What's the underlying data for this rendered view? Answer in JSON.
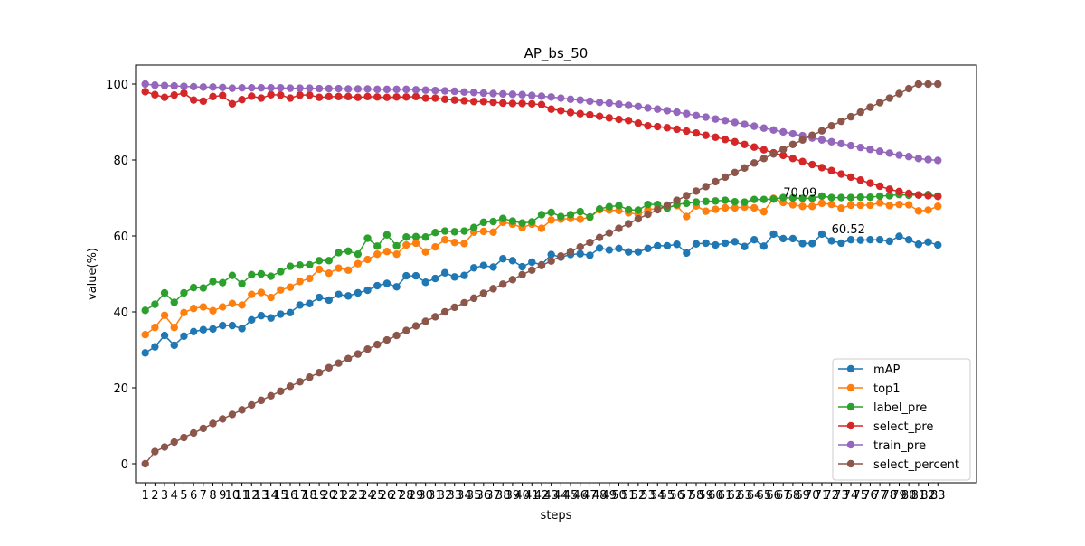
{
  "chart_data": {
    "type": "line",
    "title": "AP_bs_50",
    "xlabel": "steps",
    "ylabel": "value(%)",
    "xlim": [
      0.0,
      87.0
    ],
    "ylim": [
      -5.0,
      105.0
    ],
    "x_ticks": [
      1,
      2,
      3,
      4,
      5,
      6,
      7,
      8,
      9,
      10,
      11,
      12,
      13,
      14,
      15,
      16,
      17,
      18,
      19,
      20,
      21,
      22,
      23,
      24,
      25,
      26,
      27,
      28,
      29,
      30,
      31,
      32,
      33,
      34,
      35,
      36,
      37,
      38,
      39,
      40,
      41,
      42,
      43,
      44,
      45,
      46,
      47,
      48,
      49,
      50,
      51,
      52,
      53,
      54,
      55,
      56,
      57,
      58,
      59,
      60,
      61,
      62,
      63,
      64,
      65,
      66,
      67,
      68,
      69,
      70,
      71,
      72,
      73,
      74,
      75,
      76,
      77,
      78,
      79,
      80,
      81,
      82,
      83
    ],
    "y_ticks": [
      0,
      20,
      40,
      60,
      80,
      100
    ],
    "grid": false,
    "legend_position": "lower-right",
    "x": [
      1,
      2,
      3,
      4,
      5,
      6,
      7,
      8,
      9,
      10,
      11,
      12,
      13,
      14,
      15,
      16,
      17,
      18,
      19,
      20,
      21,
      22,
      23,
      24,
      25,
      26,
      27,
      28,
      29,
      30,
      31,
      32,
      33,
      34,
      35,
      36,
      37,
      38,
      39,
      40,
      41,
      42,
      43,
      44,
      45,
      46,
      47,
      48,
      49,
      50,
      51,
      52,
      53,
      54,
      55,
      56,
      57,
      58,
      59,
      60,
      61,
      62,
      63,
      64,
      65,
      66,
      67,
      68,
      69,
      70,
      71,
      72,
      73,
      74,
      75,
      76,
      77,
      78,
      79,
      80,
      81,
      82,
      83
    ],
    "series": [
      {
        "name": "mAP",
        "color": "#1f77b4",
        "values": [
          29.2,
          30.8,
          33.8,
          31.2,
          33.6,
          34.8,
          35.3,
          35.5,
          36.4,
          36.4,
          35.6,
          37.9,
          39.0,
          38.4,
          39.4,
          39.8,
          41.8,
          42.2,
          43.8,
          43.1,
          44.6,
          44.2,
          45.0,
          45.7,
          46.9,
          47.5,
          46.6,
          49.5,
          49.5,
          47.8,
          48.8,
          50.3,
          49.2,
          49.6,
          51.6,
          52.2,
          51.8,
          54.0,
          53.5,
          51.9,
          53.1,
          52.4,
          55.1,
          54.4,
          55.1,
          55.3,
          54.9,
          56.8,
          56.3,
          56.7,
          55.8,
          55.8,
          56.7,
          57.4,
          57.4,
          57.8,
          55.5,
          57.9,
          58.1,
          57.6,
          58.1,
          58.5,
          57.2,
          59.0,
          57.3,
          60.5,
          59.3,
          59.3,
          58.0,
          58.0,
          60.5,
          58.7,
          58.1,
          59.0,
          58.9,
          59.0,
          59.0,
          58.6,
          59.9,
          59.0,
          57.8,
          58.4,
          57.6
        ]
      },
      {
        "name": "top1",
        "color": "#ff7f0e",
        "values": [
          34.0,
          35.9,
          39.1,
          35.9,
          39.8,
          40.9,
          41.3,
          40.3,
          41.3,
          42.2,
          41.8,
          44.6,
          45.1,
          43.8,
          45.8,
          46.5,
          48.0,
          48.8,
          51.2,
          50.2,
          51.5,
          51.0,
          52.7,
          53.8,
          55.2,
          55.9,
          55.2,
          57.6,
          58.1,
          55.8,
          57.1,
          59.0,
          58.3,
          58.0,
          61.0,
          61.2,
          61.0,
          63.6,
          63.1,
          62.2,
          63.1,
          62.0,
          64.2,
          64.4,
          64.6,
          64.4,
          64.9,
          66.9,
          66.8,
          66.7,
          66.1,
          65.7,
          66.9,
          67.2,
          67.5,
          68.0,
          65.1,
          67.9,
          66.5,
          67.0,
          67.4,
          67.4,
          67.6,
          67.4,
          66.4,
          69.9,
          68.8,
          68.2,
          67.8,
          67.8,
          68.6,
          68.3,
          67.3,
          68.1,
          68.1,
          68.1,
          68.7,
          68.0,
          68.3,
          68.2,
          66.6,
          66.8,
          67.8
        ]
      },
      {
        "name": "label_pre",
        "color": "#2ca02c",
        "values": [
          40.4,
          42.0,
          45.0,
          42.5,
          45.0,
          46.4,
          46.3,
          48.0,
          47.7,
          49.6,
          47.4,
          49.8,
          50.0,
          49.4,
          50.6,
          52.0,
          52.3,
          52.4,
          53.5,
          53.5,
          55.6,
          56.0,
          55.2,
          59.4,
          57.3,
          60.3,
          57.4,
          59.7,
          59.8,
          59.7,
          60.9,
          61.3,
          61.1,
          61.3,
          62.2,
          63.6,
          63.8,
          64.6,
          63.9,
          63.4,
          63.7,
          65.6,
          66.2,
          65.1,
          65.6,
          66.4,
          65.0,
          67.1,
          67.7,
          68.0,
          66.9,
          66.8,
          68.3,
          68.3,
          67.3,
          68.3,
          68.6,
          68.9,
          69.1,
          69.2,
          69.4,
          69.0,
          68.9,
          69.6,
          69.6,
          69.7,
          70.1,
          70.0,
          69.9,
          69.9,
          70.5,
          70.1,
          70.1,
          70.1,
          70.2,
          70.2,
          70.5,
          70.6,
          70.9,
          70.7,
          70.8,
          70.9,
          70.5
        ]
      },
      {
        "name": "select_pre",
        "color": "#d62728",
        "values": [
          98.0,
          97.2,
          96.5,
          97.1,
          97.6,
          95.8,
          95.5,
          96.7,
          97.0,
          94.8,
          95.9,
          96.8,
          96.3,
          97.2,
          97.1,
          96.3,
          97.1,
          97.1,
          96.5,
          96.7,
          96.7,
          96.7,
          96.5,
          96.7,
          96.6,
          96.5,
          96.6,
          96.6,
          96.7,
          96.3,
          96.3,
          96.0,
          95.8,
          95.6,
          95.4,
          95.4,
          95.2,
          95.0,
          94.9,
          94.9,
          94.8,
          94.6,
          93.4,
          93.0,
          92.5,
          92.2,
          91.9,
          91.5,
          91.1,
          90.7,
          90.4,
          89.7,
          89.0,
          88.8,
          88.5,
          88.1,
          87.6,
          87.1,
          86.5,
          86.0,
          85.4,
          84.8,
          84.1,
          83.4,
          82.7,
          81.9,
          81.2,
          80.4,
          79.6,
          78.8,
          78.0,
          77.2,
          76.3,
          75.5,
          74.7,
          73.9,
          73.1,
          72.3,
          71.7,
          71.2,
          70.8,
          70.6,
          70.4
        ]
      },
      {
        "name": "train_pre",
        "color": "#9467bd",
        "values": [
          100.0,
          99.7,
          99.6,
          99.5,
          99.4,
          99.3,
          99.2,
          99.2,
          99.1,
          98.9,
          99.0,
          99.0,
          99.0,
          99.0,
          99.0,
          98.9,
          98.9,
          98.9,
          98.8,
          98.8,
          98.8,
          98.7,
          98.7,
          98.7,
          98.6,
          98.6,
          98.6,
          98.6,
          98.5,
          98.4,
          98.3,
          98.2,
          98.1,
          97.9,
          97.8,
          97.6,
          97.5,
          97.4,
          97.3,
          97.2,
          97.0,
          96.8,
          96.6,
          96.3,
          96.0,
          95.8,
          95.5,
          95.2,
          95.0,
          94.7,
          94.4,
          94.1,
          93.7,
          93.4,
          93.0,
          92.6,
          92.2,
          91.7,
          91.3,
          90.8,
          90.4,
          89.9,
          89.4,
          88.9,
          88.4,
          87.9,
          87.4,
          86.9,
          86.4,
          85.8,
          85.3,
          84.8,
          84.3,
          83.8,
          83.3,
          82.8,
          82.3,
          81.8,
          81.3,
          80.9,
          80.4,
          80.1,
          79.9
        ]
      },
      {
        "name": "select_percent",
        "color": "#8c564b",
        "values": [
          0.0,
          3.2,
          4.4,
          5.7,
          6.9,
          8.1,
          9.3,
          10.6,
          11.8,
          13.0,
          14.2,
          15.5,
          16.7,
          17.9,
          19.1,
          20.4,
          21.6,
          22.8,
          24.0,
          25.3,
          26.5,
          27.7,
          28.9,
          30.2,
          31.4,
          32.6,
          33.8,
          35.1,
          36.3,
          37.5,
          38.7,
          40.0,
          41.2,
          42.4,
          43.6,
          44.9,
          46.1,
          47.3,
          48.5,
          49.8,
          51.0,
          52.2,
          53.4,
          54.7,
          55.9,
          57.1,
          58.3,
          59.6,
          60.8,
          62.0,
          63.2,
          64.5,
          65.7,
          66.9,
          68.1,
          69.4,
          70.6,
          71.8,
          73.0,
          74.3,
          75.5,
          76.7,
          77.9,
          79.2,
          80.4,
          81.6,
          82.8,
          84.1,
          85.3,
          86.5,
          87.7,
          89.0,
          90.2,
          91.4,
          92.6,
          93.9,
          95.1,
          96.3,
          97.5,
          98.8,
          100.0,
          100.0,
          100.0
        ]
      }
    ],
    "annotations": [
      {
        "text": "70.09",
        "x": 67,
        "y": 70.09
      },
      {
        "text": "60.52",
        "x": 72,
        "y": 60.52
      }
    ]
  }
}
